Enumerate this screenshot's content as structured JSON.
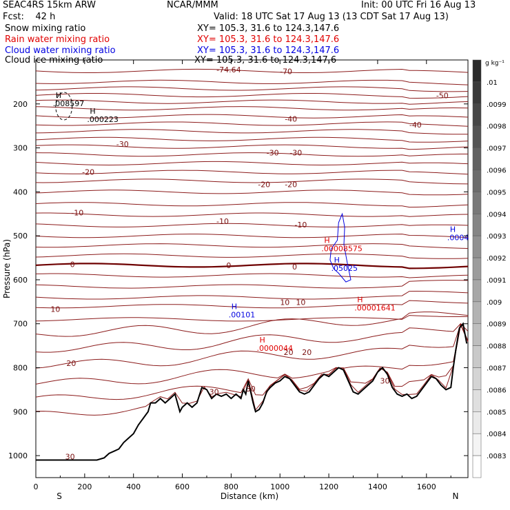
{
  "header": {
    "model": "SEAC4RS 15km ARW",
    "center": "NCAR/MMM",
    "init": "Init: 00 UTC Fri 16 Aug 13",
    "fcst": "Fcst:    42 h",
    "valid": "Valid: 18 UTC Sat 17 Aug 13 (13 CDT Sat 17 Aug 13)",
    "fields": [
      {
        "name": "Snow mixing ratio",
        "xy": "XY= 105.3, 31.6 to 124.3,147.6",
        "color": "#000000"
      },
      {
        "name": "Rain water mixing ratio",
        "xy": "XY= 105.3, 31.6 to 124.3,147.6",
        "color": "#e00000"
      },
      {
        "name": "Cloud water mixing ratio",
        "xy": "XY= 105.3, 31.6 to 124.3,147.6",
        "color": "#0000e0"
      },
      {
        "name": "Cloud ice mixing ratio",
        "xy": "XY= 105.3, 31.6 to 124.3,147.6",
        "color": "#000000"
      }
    ]
  },
  "chart_data": {
    "type": "contour",
    "xlabel": "Distance (km)",
    "ylabel": "Pressure (hPa)",
    "xlim": [
      0,
      1770
    ],
    "ylim": [
      1050,
      100
    ],
    "x_ticks": [
      0,
      200,
      400,
      600,
      800,
      1000,
      1200,
      1400,
      1600
    ],
    "y_ticks": [
      200,
      300,
      400,
      500,
      600,
      700,
      800,
      900,
      1000
    ],
    "x_end_labels": {
      "left": "S",
      "right": "N"
    },
    "temperature_contours": {
      "color": "#8b1a1a",
      "zero_color": "#6e0000",
      "labels": [
        {
          "text": "-74.64",
          "x": 790,
          "p": 122
        },
        {
          "text": "-70",
          "x": 1025,
          "p": 126
        },
        {
          "text": "-50",
          "x": 1665,
          "p": 181
        },
        {
          "text": "-40",
          "x": 1045,
          "p": 234
        },
        {
          "text": "-40",
          "x": 1555,
          "p": 247
        },
        {
          "text": "-30",
          "x": 355,
          "p": 291
        },
        {
          "text": "-30",
          "x": 970,
          "p": 311
        },
        {
          "text": "-30",
          "x": 1065,
          "p": 311
        },
        {
          "text": "-20",
          "x": 215,
          "p": 355
        },
        {
          "text": "-20",
          "x": 935,
          "p": 383
        },
        {
          "text": "-20",
          "x": 1045,
          "p": 383
        },
        {
          "text": "-10",
          "x": 170,
          "p": 447
        },
        {
          "text": "-10",
          "x": 765,
          "p": 467
        },
        {
          "text": "-10",
          "x": 1085,
          "p": 475
        },
        {
          "text": "0",
          "x": 150,
          "p": 565
        },
        {
          "text": "0",
          "x": 790,
          "p": 567
        },
        {
          "text": "0",
          "x": 1060,
          "p": 570
        },
        {
          "text": "10",
          "x": 80,
          "p": 667
        },
        {
          "text": "10",
          "x": 1020,
          "p": 651
        },
        {
          "text": "10",
          "x": 1085,
          "p": 651
        },
        {
          "text": "20",
          "x": 1035,
          "p": 765
        },
        {
          "text": "20",
          "x": 1110,
          "p": 765
        },
        {
          "text": "20",
          "x": 145,
          "p": 790
        },
        {
          "text": "30",
          "x": 730,
          "p": 855
        },
        {
          "text": "30",
          "x": 880,
          "p": 848
        },
        {
          "text": "30",
          "x": 1430,
          "p": 830
        },
        {
          "text": "30",
          "x": 140,
          "p": 1002
        }
      ]
    },
    "maxima": [
      {
        "text": ".008597",
        "x": 115,
        "p": 200,
        "color": "#000000"
      },
      {
        "text": ".000223",
        "x": 255,
        "p": 236,
        "color": "#000000"
      },
      {
        "text": ".00008575",
        "x": 1215,
        "p": 530,
        "color": "#e00000"
      },
      {
        "text": ".05025",
        "x": 1255,
        "p": 575,
        "color": "#0000e0"
      },
      {
        "text": ".0004",
        "x": 1730,
        "p": 505,
        "color": "#0000e0"
      },
      {
        "text": ".00101",
        "x": 835,
        "p": 681,
        "color": "#0000e0"
      },
      {
        "text": ".00001641",
        "x": 1350,
        "p": 665,
        "color": "#e00000"
      },
      {
        "text": ".0000044",
        "x": 950,
        "p": 757,
        "color": "#e00000"
      }
    ],
    "terrain_surface_p": [
      [
        0,
        1010
      ],
      [
        100,
        1010
      ],
      [
        200,
        1010
      ],
      [
        250,
        1010
      ],
      [
        280,
        1005
      ],
      [
        300,
        995
      ],
      [
        320,
        990
      ],
      [
        340,
        985
      ],
      [
        360,
        970
      ],
      [
        380,
        960
      ],
      [
        400,
        950
      ],
      [
        420,
        930
      ],
      [
        440,
        915
      ],
      [
        460,
        900
      ],
      [
        470,
        880
      ],
      [
        490,
        880
      ],
      [
        510,
        870
      ],
      [
        530,
        880
      ],
      [
        550,
        870
      ],
      [
        570,
        860
      ],
      [
        590,
        900
      ],
      [
        600,
        890
      ],
      [
        620,
        880
      ],
      [
        640,
        890
      ],
      [
        660,
        880
      ],
      [
        680,
        845
      ],
      [
        700,
        850
      ],
      [
        720,
        870
      ],
      [
        740,
        860
      ],
      [
        760,
        865
      ],
      [
        780,
        860
      ],
      [
        800,
        870
      ],
      [
        820,
        860
      ],
      [
        840,
        870
      ],
      [
        850,
        850
      ],
      [
        860,
        860
      ],
      [
        870,
        830
      ],
      [
        890,
        880
      ],
      [
        900,
        900
      ],
      [
        915,
        895
      ],
      [
        930,
        880
      ],
      [
        945,
        855
      ],
      [
        960,
        845
      ],
      [
        980,
        835
      ],
      [
        1000,
        830
      ],
      [
        1020,
        820
      ],
      [
        1040,
        825
      ],
      [
        1060,
        840
      ],
      [
        1080,
        855
      ],
      [
        1100,
        860
      ],
      [
        1120,
        855
      ],
      [
        1140,
        840
      ],
      [
        1160,
        825
      ],
      [
        1180,
        815
      ],
      [
        1200,
        820
      ],
      [
        1220,
        810
      ],
      [
        1240,
        800
      ],
      [
        1260,
        805
      ],
      [
        1280,
        830
      ],
      [
        1300,
        855
      ],
      [
        1320,
        860
      ],
      [
        1340,
        850
      ],
      [
        1360,
        840
      ],
      [
        1380,
        830
      ],
      [
        1400,
        810
      ],
      [
        1420,
        800
      ],
      [
        1440,
        815
      ],
      [
        1460,
        845
      ],
      [
        1480,
        860
      ],
      [
        1500,
        865
      ],
      [
        1520,
        860
      ],
      [
        1540,
        870
      ],
      [
        1560,
        865
      ],
      [
        1580,
        850
      ],
      [
        1600,
        835
      ],
      [
        1620,
        820
      ],
      [
        1640,
        825
      ],
      [
        1660,
        840
      ],
      [
        1680,
        850
      ],
      [
        1700,
        845
      ],
      [
        1710,
        800
      ],
      [
        1720,
        760
      ],
      [
        1735,
        710
      ],
      [
        1750,
        700
      ],
      [
        1765,
        745
      ]
    ],
    "colorbar": {
      "units": "g kg⁻¹",
      "labels": [
        ".01",
        ".0099",
        ".0098",
        ".0097",
        ".0096",
        ".0095",
        ".0094",
        ".0093",
        ".0092",
        ".0091",
        ".009",
        ".0089",
        ".0088",
        ".0087",
        ".0086",
        ".0085",
        ".0084",
        ".0083"
      ],
      "top_color": "#2a2a2a",
      "bottom_color": "#ffffff"
    }
  }
}
